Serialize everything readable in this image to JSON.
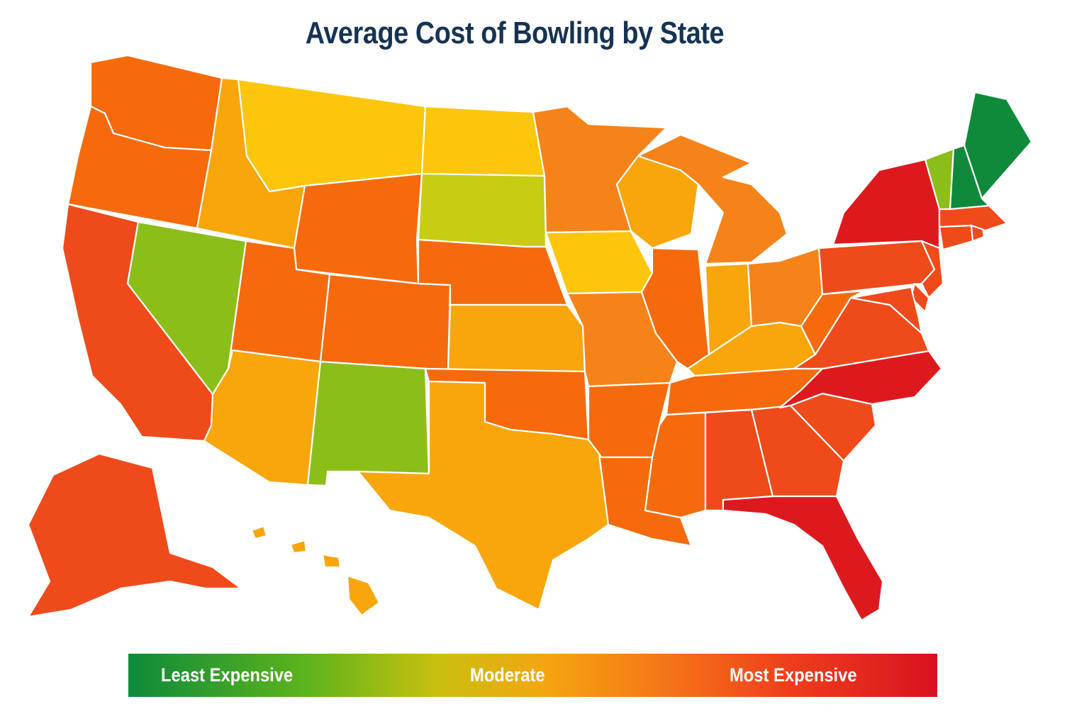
{
  "title": "Average Cost of Bowling by State",
  "legend": {
    "least_label": "Least Expensive",
    "moderate_label": "Moderate",
    "most_label": "Most Expensive"
  },
  "colors": {
    "least": "#0e8a3a",
    "low": "#8cbe1a",
    "low_mid": "#c8cc12",
    "moderate_yellow": "#fcc60c",
    "moderate": "#f8a60c",
    "mid_high": "#f5831a",
    "high": "#f56a0c",
    "higher": "#ee4a1a",
    "most": "#dc1a1e"
  },
  "states": [
    {
      "name": "Washington",
      "level": "high"
    },
    {
      "name": "Oregon",
      "level": "high"
    },
    {
      "name": "California",
      "level": "higher"
    },
    {
      "name": "Nevada",
      "level": "low"
    },
    {
      "name": "Idaho",
      "level": "moderate"
    },
    {
      "name": "Montana",
      "level": "moderate_yellow"
    },
    {
      "name": "Wyoming",
      "level": "high"
    },
    {
      "name": "Utah",
      "level": "high"
    },
    {
      "name": "Arizona",
      "level": "moderate"
    },
    {
      "name": "Colorado",
      "level": "high"
    },
    {
      "name": "New Mexico",
      "level": "low"
    },
    {
      "name": "North Dakota",
      "level": "moderate_yellow"
    },
    {
      "name": "South Dakota",
      "level": "low_mid"
    },
    {
      "name": "Nebraska",
      "level": "high"
    },
    {
      "name": "Kansas",
      "level": "moderate"
    },
    {
      "name": "Oklahoma",
      "level": "high"
    },
    {
      "name": "Texas",
      "level": "moderate"
    },
    {
      "name": "Minnesota",
      "level": "mid_high"
    },
    {
      "name": "Iowa",
      "level": "moderate_yellow"
    },
    {
      "name": "Missouri",
      "level": "mid_high"
    },
    {
      "name": "Arkansas",
      "level": "high"
    },
    {
      "name": "Louisiana",
      "level": "high"
    },
    {
      "name": "Wisconsin",
      "level": "moderate"
    },
    {
      "name": "Illinois",
      "level": "high"
    },
    {
      "name": "Michigan",
      "level": "mid_high"
    },
    {
      "name": "Indiana",
      "level": "moderate"
    },
    {
      "name": "Ohio",
      "level": "mid_high"
    },
    {
      "name": "Kentucky",
      "level": "moderate"
    },
    {
      "name": "Tennessee",
      "level": "high"
    },
    {
      "name": "Mississippi",
      "level": "high"
    },
    {
      "name": "Alabama",
      "level": "higher"
    },
    {
      "name": "Georgia",
      "level": "higher"
    },
    {
      "name": "Florida",
      "level": "most"
    },
    {
      "name": "South Carolina",
      "level": "higher"
    },
    {
      "name": "North Carolina",
      "level": "most"
    },
    {
      "name": "Virginia",
      "level": "higher"
    },
    {
      "name": "West Virginia",
      "level": "high"
    },
    {
      "name": "Pennsylvania",
      "level": "higher"
    },
    {
      "name": "New York",
      "level": "most"
    },
    {
      "name": "Vermont",
      "level": "low"
    },
    {
      "name": "New Hampshire",
      "level": "least"
    },
    {
      "name": "Maine",
      "level": "least"
    },
    {
      "name": "Massachusetts",
      "level": "higher"
    },
    {
      "name": "Connecticut",
      "level": "higher"
    },
    {
      "name": "Rhode Island",
      "level": "higher"
    },
    {
      "name": "New Jersey",
      "level": "higher"
    },
    {
      "name": "Delaware",
      "level": "higher"
    },
    {
      "name": "Maryland",
      "level": "higher"
    },
    {
      "name": "Alaska",
      "level": "higher"
    },
    {
      "name": "Hawaii",
      "level": "moderate"
    }
  ]
}
